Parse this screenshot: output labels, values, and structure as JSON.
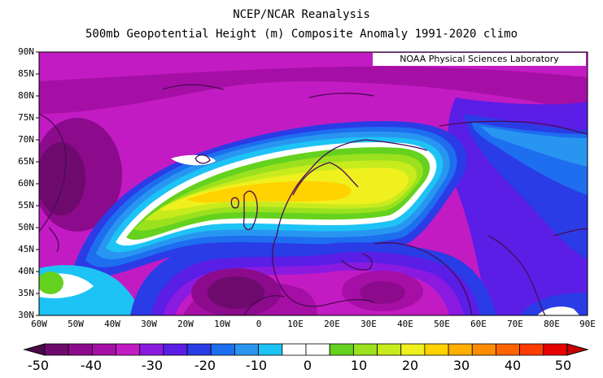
{
  "title_line1": "NCEP/NCAR Reanalysis",
  "title_line2": "500mb Geopotential Height (m) Composite Anomaly 1991-2020 climo",
  "credit": "NOAA Physical Sciences Laboratory",
  "lat_labels": [
    "90N",
    "85N",
    "80N",
    "75N",
    "70N",
    "65N",
    "60N",
    "55N",
    "50N",
    "45N",
    "40N",
    "35N",
    "30N"
  ],
  "lon_labels": [
    "60W",
    "50W",
    "40W",
    "30W",
    "20W",
    "10W",
    "0",
    "10E",
    "20E",
    "30E",
    "40E",
    "50E",
    "60E",
    "70E",
    "80E",
    "90E"
  ],
  "colorbar": {
    "labels": [
      "-50",
      "-40",
      "-30",
      "-20",
      "-10",
      "0",
      "10",
      "20",
      "30",
      "40",
      "50"
    ],
    "colors": [
      "#6e0a6e",
      "#8c0a8c",
      "#a50fa5",
      "#c31bc3",
      "#8a1ae0",
      "#5a1ee6",
      "#2a3ce6",
      "#1e6ef0",
      "#2896f0",
      "#1ec3f5",
      "#ffffff",
      "#ffffff",
      "#64d21e",
      "#9be11e",
      "#c8eb1e",
      "#f0f01e",
      "#ffd200",
      "#ffaf00",
      "#ff8c00",
      "#ff6400",
      "#ff3c00",
      "#e60000"
    ]
  }
}
